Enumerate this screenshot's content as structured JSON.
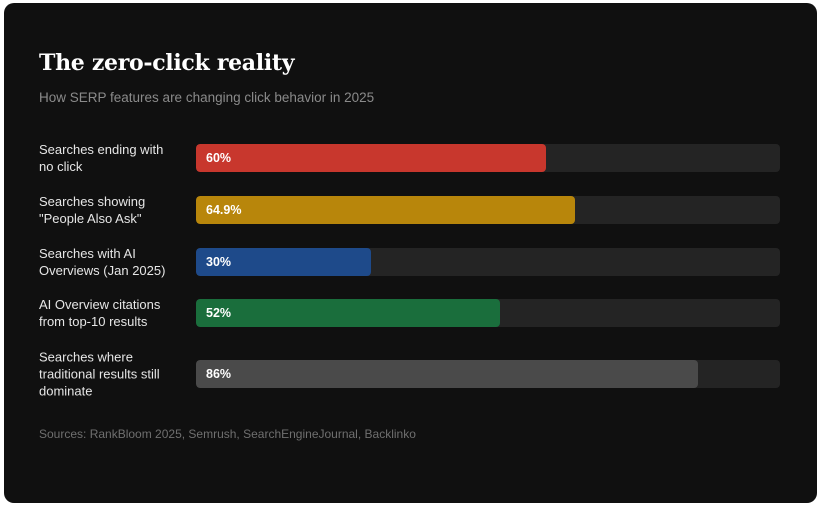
{
  "chart_data": {
    "type": "bar",
    "orientation": "horizontal",
    "title": "The zero-click reality",
    "subtitle": "How SERP features are changing click behavior in 2025",
    "source": "Sources: RankBloom 2025, Semrush, SearchEngineJournal, Backlinko",
    "xlim": [
      0,
      100
    ],
    "grid": false,
    "categories": [
      "Searches ending with no click",
      "Searches showing \"People Also Ask\"",
      "Searches with AI Overviews (Jan 2025)",
      "AI Overview citations from top-10 results",
      "Searches where traditional results still dominate"
    ],
    "values": [
      60,
      64.9,
      30,
      52,
      86
    ],
    "value_labels": [
      "60%",
      "64.9%",
      "30%",
      "52%",
      "86%"
    ],
    "colors": [
      "#c8372d",
      "#b8860b",
      "#1e4a8a",
      "#1a6e3c",
      "#4a4a4a"
    ],
    "track_color": "#242424",
    "background_color": "#101010"
  }
}
